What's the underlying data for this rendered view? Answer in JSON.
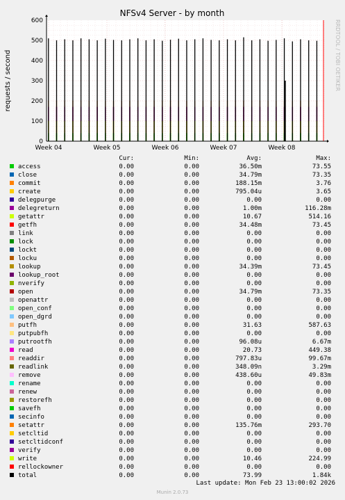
{
  "chart_data": {
    "type": "area",
    "title": "NFSv4 Server - by month",
    "ylabel": "requests / second",
    "watermark": "RRDTOOL / TOBI OETIKER",
    "ylim": [
      0,
      600
    ],
    "yticks": [
      0,
      100,
      200,
      300,
      400,
      500,
      600
    ],
    "xticks": [
      "Week 04",
      "Week 05",
      "Week 06",
      "Week 07",
      "Week 08"
    ],
    "grid": true,
    "series_shapes": {
      "num_spikes": 34,
      "total_peak_values": [
        510,
        500,
        505,
        500,
        510,
        505,
        500,
        508,
        502,
        500,
        505,
        510,
        500,
        505,
        498,
        503,
        508,
        500,
        505,
        510,
        502,
        500,
        505,
        500,
        515,
        500,
        505,
        498,
        502,
        510,
        495,
        505,
        500,
        498
      ],
      "outlier_spike": {
        "position": 0.86,
        "value": 300
      },
      "getattr_level": 100,
      "access_level": 40,
      "delegreturn_level": 170,
      "putfh_level": 200
    },
    "colors": {
      "total": "#000000",
      "getattr": "#ccff00",
      "putfh": "#ffbb88",
      "access": "#00cc00",
      "delegreturn": "#990099",
      "write": "#ccff00",
      "nowmark": "#ff0000"
    },
    "legend_header": {
      "cur": "Cur:",
      "min": "Min:",
      "avg": "Avg:",
      "max": "Max:"
    },
    "series": [
      {
        "name": "access",
        "color": "#00cc00",
        "cur": "0.00",
        "min": "0.00",
        "avg": "36.50m",
        "max": "73.55"
      },
      {
        "name": "close",
        "color": "#0066b3",
        "cur": "0.00",
        "min": "0.00",
        "avg": "34.79m",
        "max": "73.35"
      },
      {
        "name": "commit",
        "color": "#ff8000",
        "cur": "0.00",
        "min": "0.00",
        "avg": "188.15m",
        "max": "3.76"
      },
      {
        "name": "create",
        "color": "#ffcc00",
        "cur": "0.00",
        "min": "0.00",
        "avg": "795.04u",
        "max": "3.65"
      },
      {
        "name": "delegpurge",
        "color": "#330099",
        "cur": "0.00",
        "min": "0.00",
        "avg": "0.00",
        "max": "0.00"
      },
      {
        "name": "delegreturn",
        "color": "#990099",
        "cur": "0.00",
        "min": "0.00",
        "avg": "1.00m",
        "max": "116.28m"
      },
      {
        "name": "getattr",
        "color": "#ccff00",
        "cur": "0.00",
        "min": "0.00",
        "avg": "10.67",
        "max": "514.16"
      },
      {
        "name": "getfh",
        "color": "#ff0000",
        "cur": "0.00",
        "min": "0.00",
        "avg": "34.48m",
        "max": "73.45"
      },
      {
        "name": "link",
        "color": "#808080",
        "cur": "0.00",
        "min": "0.00",
        "avg": "0.00",
        "max": "0.00"
      },
      {
        "name": "lock",
        "color": "#008f00",
        "cur": "0.00",
        "min": "0.00",
        "avg": "0.00",
        "max": "0.00"
      },
      {
        "name": "lockt",
        "color": "#00487d",
        "cur": "0.00",
        "min": "0.00",
        "avg": "0.00",
        "max": "0.00"
      },
      {
        "name": "locku",
        "color": "#b35a00",
        "cur": "0.00",
        "min": "0.00",
        "avg": "0.00",
        "max": "0.00"
      },
      {
        "name": "lookup",
        "color": "#b38f00",
        "cur": "0.00",
        "min": "0.00",
        "avg": "34.39m",
        "max": "73.45"
      },
      {
        "name": "lookup_root",
        "color": "#6b006b",
        "cur": "0.00",
        "min": "0.00",
        "avg": "0.00",
        "max": "0.00"
      },
      {
        "name": "nverify",
        "color": "#8fb300",
        "cur": "0.00",
        "min": "0.00",
        "avg": "0.00",
        "max": "0.00"
      },
      {
        "name": "open",
        "color": "#b30000",
        "cur": "0.00",
        "min": "0.00",
        "avg": "34.79m",
        "max": "73.35"
      },
      {
        "name": "openattr",
        "color": "#bebebe",
        "cur": "0.00",
        "min": "0.00",
        "avg": "0.00",
        "max": "0.00"
      },
      {
        "name": "open_conf",
        "color": "#80ff80",
        "cur": "0.00",
        "min": "0.00",
        "avg": "0.00",
        "max": "0.00"
      },
      {
        "name": "open_dgrd",
        "color": "#80c9ff",
        "cur": "0.00",
        "min": "0.00",
        "avg": "0.00",
        "max": "0.00"
      },
      {
        "name": "putfh",
        "color": "#ffc080",
        "cur": "0.00",
        "min": "0.00",
        "avg": "31.63",
        "max": "587.63"
      },
      {
        "name": "putpubfh",
        "color": "#ffe680",
        "cur": "0.00",
        "min": "0.00",
        "avg": "0.00",
        "max": "0.00"
      },
      {
        "name": "putrootfh",
        "color": "#aa80ff",
        "cur": "0.00",
        "min": "0.00",
        "avg": "96.08u",
        "max": "6.67m"
      },
      {
        "name": "read",
        "color": "#ee00cc",
        "cur": "0.00",
        "min": "0.00",
        "avg": "20.73",
        "max": "449.38"
      },
      {
        "name": "readdir",
        "color": "#ff8080",
        "cur": "0.00",
        "min": "0.00",
        "avg": "797.83u",
        "max": "99.67m"
      },
      {
        "name": "readlink",
        "color": "#666600",
        "cur": "0.00",
        "min": "0.00",
        "avg": "348.09n",
        "max": "3.29m"
      },
      {
        "name": "remove",
        "color": "#ffbfff",
        "cur": "0.00",
        "min": "0.00",
        "avg": "438.60u",
        "max": "49.83m"
      },
      {
        "name": "rename",
        "color": "#00ffcc",
        "cur": "0.00",
        "min": "0.00",
        "avg": "0.00",
        "max": "0.00"
      },
      {
        "name": "renew",
        "color": "#cc6699",
        "cur": "0.00",
        "min": "0.00",
        "avg": "0.00",
        "max": "0.00"
      },
      {
        "name": "restorefh",
        "color": "#999900",
        "cur": "0.00",
        "min": "0.00",
        "avg": "0.00",
        "max": "0.00"
      },
      {
        "name": "savefh",
        "color": "#00cc00",
        "cur": "0.00",
        "min": "0.00",
        "avg": "0.00",
        "max": "0.00"
      },
      {
        "name": "secinfo",
        "color": "#0066b3",
        "cur": "0.00",
        "min": "0.00",
        "avg": "0.00",
        "max": "0.00"
      },
      {
        "name": "setattr",
        "color": "#ff8000",
        "cur": "0.00",
        "min": "0.00",
        "avg": "135.76m",
        "max": "293.70"
      },
      {
        "name": "setcltid",
        "color": "#ffcc00",
        "cur": "0.00",
        "min": "0.00",
        "avg": "0.00",
        "max": "0.00"
      },
      {
        "name": "setcltidconf",
        "color": "#330099",
        "cur": "0.00",
        "min": "0.00",
        "avg": "0.00",
        "max": "0.00"
      },
      {
        "name": "verify",
        "color": "#990099",
        "cur": "0.00",
        "min": "0.00",
        "avg": "0.00",
        "max": "0.00"
      },
      {
        "name": "write",
        "color": "#ccff00",
        "cur": "0.00",
        "min": "0.00",
        "avg": "10.46",
        "max": "224.99"
      },
      {
        "name": "rellockowner",
        "color": "#ff0000",
        "cur": "0.00",
        "min": "0.00",
        "avg": "0.00",
        "max": "0.00"
      },
      {
        "name": "total",
        "color": "#000000",
        "cur": "0.00",
        "min": "0.00",
        "avg": "73.99",
        "max": "1.84k"
      }
    ]
  },
  "footer": {
    "last_update": "Last update: Mon Feb 23 13:00:02 2026",
    "version": "Munin 2.0.73"
  }
}
